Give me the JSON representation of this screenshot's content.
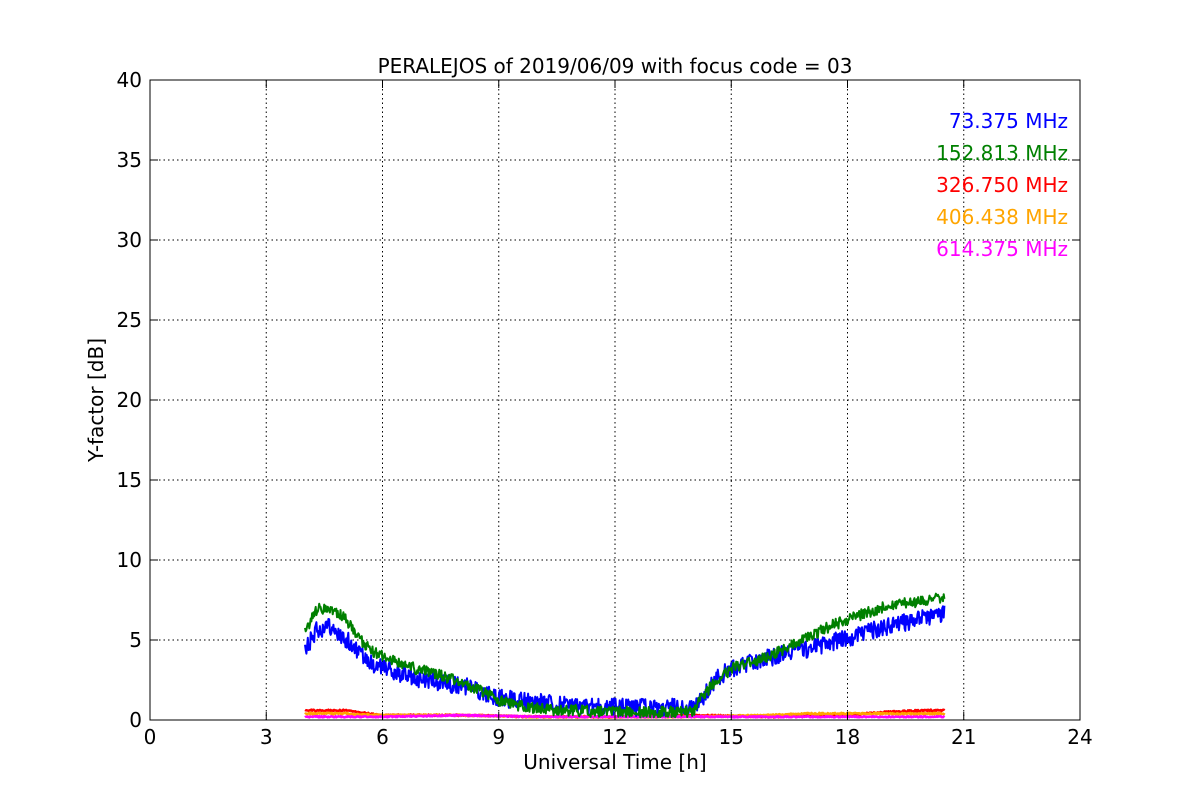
{
  "chart_data": {
    "type": "line",
    "title": "PERALEJOS of 2019/06/09 with focus code = 03",
    "xlabel": "Universal Time [h]",
    "ylabel": "Y-factor [dB]",
    "xlim": [
      0,
      24
    ],
    "ylim": [
      0,
      40
    ],
    "xticks": [
      "0",
      "3",
      "6",
      "9",
      "12",
      "15",
      "18",
      "21",
      "24"
    ],
    "yticks": [
      "0",
      "5",
      "10",
      "15",
      "20",
      "25",
      "30",
      "35",
      "40"
    ],
    "grid": true,
    "legend_position": "top-right",
    "series": [
      {
        "name": "73.375 MHz",
        "color": "#0000ff",
        "x": [
          4.0,
          4.3,
          4.6,
          5.0,
          5.4,
          5.8,
          6.2,
          6.6,
          7.0,
          7.5,
          8.0,
          8.5,
          9.0,
          9.5,
          10.0,
          10.5,
          11.0,
          11.5,
          12.0,
          12.5,
          13.0,
          13.5,
          14.0,
          14.3,
          14.6,
          15.0,
          15.5,
          16.0,
          16.5,
          17.0,
          17.5,
          18.0,
          18.5,
          19.0,
          19.5,
          20.0,
          20.5
        ],
        "values": [
          4.3,
          5.6,
          5.9,
          5.2,
          4.2,
          3.4,
          3.1,
          2.8,
          2.5,
          2.3,
          2.2,
          1.8,
          1.4,
          1.2,
          1.1,
          1.0,
          0.9,
          0.9,
          0.8,
          0.8,
          0.8,
          0.8,
          0.8,
          1.5,
          2.6,
          3.2,
          3.6,
          3.9,
          4.2,
          4.4,
          4.8,
          5.1,
          5.5,
          5.8,
          6.1,
          6.4,
          6.6
        ]
      },
      {
        "name": "152.813 MHz",
        "color": "#008000",
        "x": [
          4.0,
          4.3,
          4.6,
          5.0,
          5.4,
          5.8,
          6.2,
          6.6,
          7.0,
          7.5,
          8.0,
          8.5,
          9.0,
          9.5,
          10.0,
          10.5,
          11.0,
          11.5,
          12.0,
          12.5,
          13.0,
          13.5,
          14.0,
          14.3,
          14.6,
          15.0,
          15.5,
          16.0,
          16.5,
          17.0,
          17.5,
          18.0,
          18.5,
          19.0,
          19.5,
          20.0,
          20.5
        ],
        "values": [
          5.6,
          6.9,
          7.0,
          6.4,
          5.1,
          4.2,
          3.8,
          3.4,
          3.1,
          2.8,
          2.4,
          1.9,
          1.2,
          0.9,
          0.7,
          0.6,
          0.6,
          0.5,
          0.5,
          0.5,
          0.5,
          0.5,
          0.5,
          1.6,
          2.4,
          3.2,
          3.6,
          4.0,
          4.6,
          5.2,
          5.8,
          6.3,
          6.7,
          7.1,
          7.3,
          7.5,
          7.7
        ]
      },
      {
        "name": "326.750 MHz",
        "color": "#ff0000",
        "x": [
          4.0,
          5.0,
          6.0,
          8.0,
          10.0,
          12.0,
          14.0,
          16.0,
          18.0,
          19.0,
          20.0,
          20.5
        ],
        "values": [
          0.6,
          0.6,
          0.3,
          0.3,
          0.2,
          0.2,
          0.3,
          0.2,
          0.3,
          0.5,
          0.6,
          0.6
        ]
      },
      {
        "name": "406.438 MHz",
        "color": "#ffa500",
        "x": [
          4.0,
          5.0,
          6.0,
          8.0,
          10.0,
          12.0,
          14.0,
          16.0,
          17.0,
          18.0,
          19.0,
          20.0,
          20.5
        ],
        "values": [
          0.4,
          0.4,
          0.3,
          0.3,
          0.2,
          0.2,
          0.2,
          0.3,
          0.4,
          0.4,
          0.4,
          0.4,
          0.4
        ]
      },
      {
        "name": "614.375 MHz",
        "color": "#ff00ff",
        "x": [
          4.0,
          5.0,
          6.0,
          8.0,
          10.0,
          12.0,
          14.0,
          16.0,
          18.0,
          20.0,
          20.5
        ],
        "values": [
          0.2,
          0.2,
          0.2,
          0.3,
          0.2,
          0.2,
          0.2,
          0.2,
          0.2,
          0.2,
          0.2
        ]
      }
    ]
  }
}
